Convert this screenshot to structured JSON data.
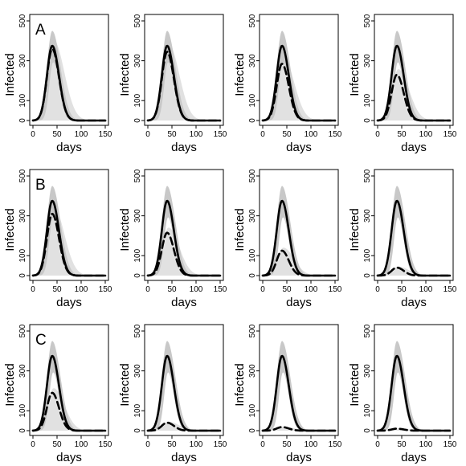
{
  "figure": {
    "rows": [
      {
        "label": "A"
      },
      {
        "label": "B"
      },
      {
        "label": "C"
      }
    ]
  },
  "chart_data": [
    {
      "type": "line",
      "row": "A",
      "column": 1,
      "xlabel": "days",
      "ylabel": "Infected",
      "xlim": [
        0,
        150
      ],
      "ylim": [
        0,
        500
      ],
      "xticks": [
        0,
        50,
        100,
        150
      ],
      "yticks": [
        0,
        100,
        300,
        500
      ],
      "baseline_peak": 375,
      "scenario_peak": 360
    },
    {
      "type": "line",
      "row": "A",
      "column": 2,
      "xlabel": "days",
      "ylabel": "Infected",
      "xlim": [
        0,
        150
      ],
      "ylim": [
        0,
        500
      ],
      "xticks": [
        0,
        50,
        100,
        150
      ],
      "yticks": [
        0,
        100,
        300,
        500
      ],
      "baseline_peak": 375,
      "scenario_peak": 345
    },
    {
      "type": "line",
      "row": "A",
      "column": 3,
      "xlabel": "days",
      "ylabel": "Infected",
      "xlim": [
        0,
        150
      ],
      "ylim": [
        0,
        500
      ],
      "xticks": [
        0,
        50,
        100,
        150
      ],
      "yticks": [
        0,
        100,
        300,
        500
      ],
      "baseline_peak": 375,
      "scenario_peak": 285
    },
    {
      "type": "line",
      "row": "A",
      "column": 4,
      "xlabel": "days",
      "ylabel": "Infected",
      "xlim": [
        0,
        150
      ],
      "ylim": [
        0,
        500
      ],
      "xticks": [
        0,
        50,
        100,
        150
      ],
      "yticks": [
        0,
        100,
        300,
        500
      ],
      "baseline_peak": 375,
      "scenario_peak": 230
    },
    {
      "type": "line",
      "row": "B",
      "column": 1,
      "xlabel": "days",
      "ylabel": "Infected",
      "xlim": [
        0,
        150
      ],
      "ylim": [
        0,
        500
      ],
      "xticks": [
        0,
        50,
        100,
        150
      ],
      "yticks": [
        0,
        100,
        300,
        500
      ],
      "baseline_peak": 375,
      "scenario_peak": 310
    },
    {
      "type": "line",
      "row": "B",
      "column": 2,
      "xlabel": "days",
      "ylabel": "Infected",
      "xlim": [
        0,
        150
      ],
      "ylim": [
        0,
        500
      ],
      "xticks": [
        0,
        50,
        100,
        150
      ],
      "yticks": [
        0,
        100,
        300,
        500
      ],
      "baseline_peak": 375,
      "scenario_peak": 215
    },
    {
      "type": "line",
      "row": "B",
      "column": 3,
      "xlabel": "days",
      "ylabel": "Infected",
      "xlim": [
        0,
        150
      ],
      "ylim": [
        0,
        500
      ],
      "xticks": [
        0,
        50,
        100,
        150
      ],
      "yticks": [
        0,
        100,
        300,
        500
      ],
      "baseline_peak": 375,
      "scenario_peak": 125
    },
    {
      "type": "line",
      "row": "B",
      "column": 4,
      "xlabel": "days",
      "ylabel": "Infected",
      "xlim": [
        0,
        150
      ],
      "ylim": [
        0,
        500
      ],
      "xticks": [
        0,
        50,
        100,
        150
      ],
      "yticks": [
        0,
        100,
        300,
        500
      ],
      "baseline_peak": 375,
      "scenario_peak": 40
    },
    {
      "type": "line",
      "row": "C",
      "column": 1,
      "xlabel": "days",
      "ylabel": "Infected",
      "xlim": [
        0,
        150
      ],
      "ylim": [
        0,
        500
      ],
      "xticks": [
        0,
        50,
        100,
        150
      ],
      "yticks": [
        0,
        100,
        300,
        500
      ],
      "baseline_peak": 375,
      "scenario_peak": 190
    },
    {
      "type": "line",
      "row": "C",
      "column": 2,
      "xlabel": "days",
      "ylabel": "Infected",
      "xlim": [
        0,
        150
      ],
      "ylim": [
        0,
        500
      ],
      "xticks": [
        0,
        50,
        100,
        150
      ],
      "yticks": [
        0,
        100,
        300,
        500
      ],
      "baseline_peak": 375,
      "scenario_peak": 40
    },
    {
      "type": "line",
      "row": "C",
      "column": 3,
      "xlabel": "days",
      "ylabel": "Infected",
      "xlim": [
        0,
        150
      ],
      "ylim": [
        0,
        500
      ],
      "xticks": [
        0,
        50,
        100,
        150
      ],
      "yticks": [
        0,
        100,
        300,
        500
      ],
      "baseline_peak": 375,
      "scenario_peak": 18
    },
    {
      "type": "line",
      "row": "C",
      "column": 4,
      "xlabel": "days",
      "ylabel": "Infected",
      "xlim": [
        0,
        150
      ],
      "ylim": [
        0,
        500
      ],
      "xticks": [
        0,
        50,
        100,
        150
      ],
      "yticks": [
        0,
        100,
        300,
        500
      ],
      "baseline_peak": 375,
      "scenario_peak": 10
    }
  ]
}
